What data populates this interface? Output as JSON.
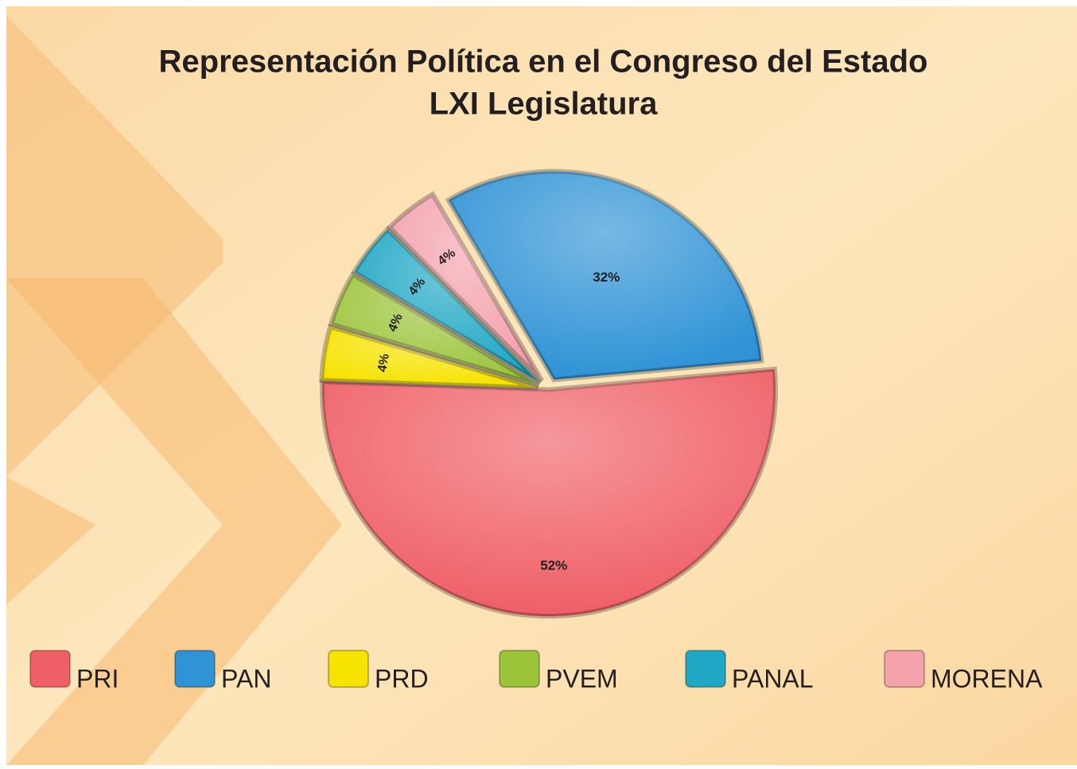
{
  "chart_data": {
    "type": "pie",
    "title": "Representación Política en el Congreso del Estado",
    "subtitle": "LXI Legislatura",
    "categories": [
      "PRI",
      "PAN",
      "PRD",
      "PVEM",
      "PANAL",
      "MORENA"
    ],
    "values": [
      52,
      32,
      4,
      4,
      4,
      4
    ],
    "value_labels": [
      "52%",
      "32%",
      "4%",
      "4%",
      "4%",
      "4%"
    ],
    "colors": [
      "#ef5f66",
      "#2f93d6",
      "#f6e300",
      "#9cc43a",
      "#1fa7c4",
      "#f4a2ac"
    ],
    "legend": "bottom"
  }
}
